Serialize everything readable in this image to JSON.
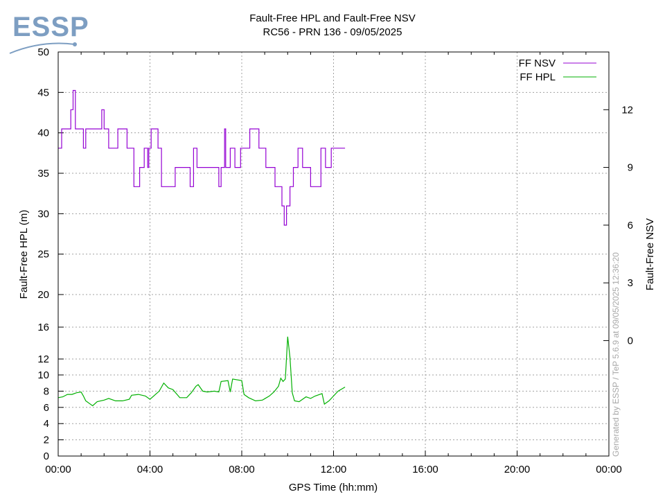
{
  "logo": {
    "text": "ESSP",
    "color": "#7d9ec2"
  },
  "title": {
    "line1": "Fault-Free HPL and Fault-Free NSV",
    "line2": "RC56 - PRN 136 - 09/05/2025"
  },
  "credit": "Generated by ESSP / TeP 5.6.9 at 09/05/2025 12:36:20",
  "colors": {
    "nsv": "#9400d3",
    "hpl": "#00b000",
    "grid": "#a0a0a0"
  },
  "chart_data": {
    "type": "line",
    "title": "Fault-Free HPL and Fault-Free NSV",
    "subtitle": "RC56 - PRN 136 - 09/05/2025",
    "xlabel": "GPS Time (hh:mm)",
    "ylabel": "Fault-Free HPL (m)",
    "y2label": "Fault-Free NSV",
    "x_ticks": [
      {
        "label": "00:00",
        "value": 0
      },
      {
        "label": "04:00",
        "value": 4
      },
      {
        "label": "08:00",
        "value": 8
      },
      {
        "label": "12:00",
        "value": 12
      },
      {
        "label": "16:00",
        "value": 16
      },
      {
        "label": "20:00",
        "value": 20
      },
      {
        "label": "00:00",
        "value": 24
      }
    ],
    "xlim_hours": [
      0,
      24
    ],
    "y_ticks": [
      0,
      2,
      4,
      6,
      8,
      10,
      12,
      16,
      20,
      25,
      30,
      35,
      40,
      45,
      50
    ],
    "y_scale": "piecewise linear: 0-10 step 2, 10-20 compressed, 20-50 step 5",
    "ylim": [
      0,
      50
    ],
    "y2_ticks": [
      0,
      3,
      6,
      9,
      12
    ],
    "y2lim": [
      -6,
      15
    ],
    "grid": true,
    "legend_position": "top-right",
    "series": [
      {
        "name": "FF NSV",
        "axis": "right",
        "x": [
          0,
          0.15,
          0.15,
          0.55,
          0.55,
          0.65,
          0.65,
          0.75,
          0.75,
          1.1,
          1.1,
          1.2,
          1.2,
          1.9,
          1.9,
          2.0,
          2.0,
          2.2,
          2.2,
          2.6,
          2.6,
          3.0,
          3.0,
          3.3,
          3.3,
          3.55,
          3.55,
          3.75,
          3.75,
          3.9,
          3.9,
          3.95,
          3.95,
          4.05,
          4.05,
          4.35,
          4.35,
          4.5,
          4.5,
          5.1,
          5.1,
          5.75,
          5.75,
          5.9,
          5.9,
          6.05,
          6.05,
          7.0,
          7.0,
          7.1,
          7.1,
          7.25,
          7.25,
          7.3,
          7.3,
          7.5,
          7.5,
          7.7,
          7.7,
          7.95,
          7.95,
          8.35,
          8.35,
          8.75,
          8.75,
          9.05,
          9.05,
          9.45,
          9.45,
          9.75,
          9.75,
          9.85,
          9.85,
          9.95,
          9.95,
          10.1,
          10.1,
          10.25,
          10.25,
          10.45,
          10.45,
          10.65,
          10.65,
          11.0,
          11.0,
          11.45,
          11.45,
          11.65,
          11.65,
          11.9,
          11.9,
          12.5
        ],
        "values": [
          10,
          10,
          11,
          11,
          12,
          12,
          13,
          13,
          11,
          11,
          10,
          10,
          11,
          11,
          12,
          12,
          11,
          11,
          10,
          10,
          11,
          11,
          10,
          10,
          8,
          8,
          9,
          9,
          10,
          10,
          9,
          9,
          10,
          10,
          11,
          11,
          10,
          10,
          8,
          8,
          9,
          9,
          8,
          8,
          10,
          10,
          9,
          9,
          8,
          8,
          9,
          9,
          11,
          11,
          9,
          9,
          10,
          10,
          9,
          9,
          10,
          10,
          11,
          11,
          10,
          10,
          9,
          9,
          8,
          8,
          7,
          7,
          6,
          6,
          7,
          7,
          8,
          8,
          9,
          9,
          10,
          10,
          9,
          9,
          8,
          8,
          10,
          10,
          9,
          9,
          10,
          10
        ]
      },
      {
        "name": "FF HPL",
        "axis": "left",
        "x": [
          0,
          0.2,
          0.4,
          0.6,
          0.8,
          1.0,
          1.1,
          1.2,
          1.5,
          1.7,
          2.0,
          2.2,
          2.5,
          2.8,
          3.1,
          3.2,
          3.5,
          3.8,
          4.0,
          4.2,
          4.4,
          4.6,
          4.8,
          5.0,
          5.3,
          5.6,
          5.8,
          6.0,
          6.1,
          6.3,
          6.5,
          6.8,
          7.0,
          7.1,
          7.4,
          7.5,
          7.6,
          8.0,
          8.1,
          8.3,
          8.6,
          8.9,
          9.2,
          9.4,
          9.6,
          9.7,
          9.8,
          9.9,
          10.0,
          10.1,
          10.2,
          10.3,
          10.5,
          10.8,
          11.0,
          11.2,
          11.5,
          11.6,
          11.8,
          12.0,
          12.2,
          12.5
        ],
        "values": [
          7.2,
          7.3,
          7.6,
          7.6,
          7.8,
          7.9,
          7.4,
          6.8,
          6.2,
          6.7,
          6.9,
          7.1,
          6.8,
          6.8,
          7.0,
          7.5,
          7.6,
          7.4,
          7.0,
          7.5,
          8.0,
          9.0,
          8.4,
          8.2,
          7.2,
          7.2,
          7.8,
          8.6,
          8.8,
          8.0,
          7.9,
          8.0,
          7.9,
          9.2,
          9.3,
          7.9,
          9.5,
          9.3,
          7.6,
          7.2,
          6.8,
          6.9,
          7.4,
          7.9,
          8.6,
          9.6,
          9.2,
          9.5,
          14.8,
          12.2,
          7.8,
          6.8,
          6.7,
          7.3,
          7.1,
          7.4,
          7.7,
          6.4,
          6.8,
          7.4,
          8.0,
          8.5
        ]
      }
    ]
  }
}
